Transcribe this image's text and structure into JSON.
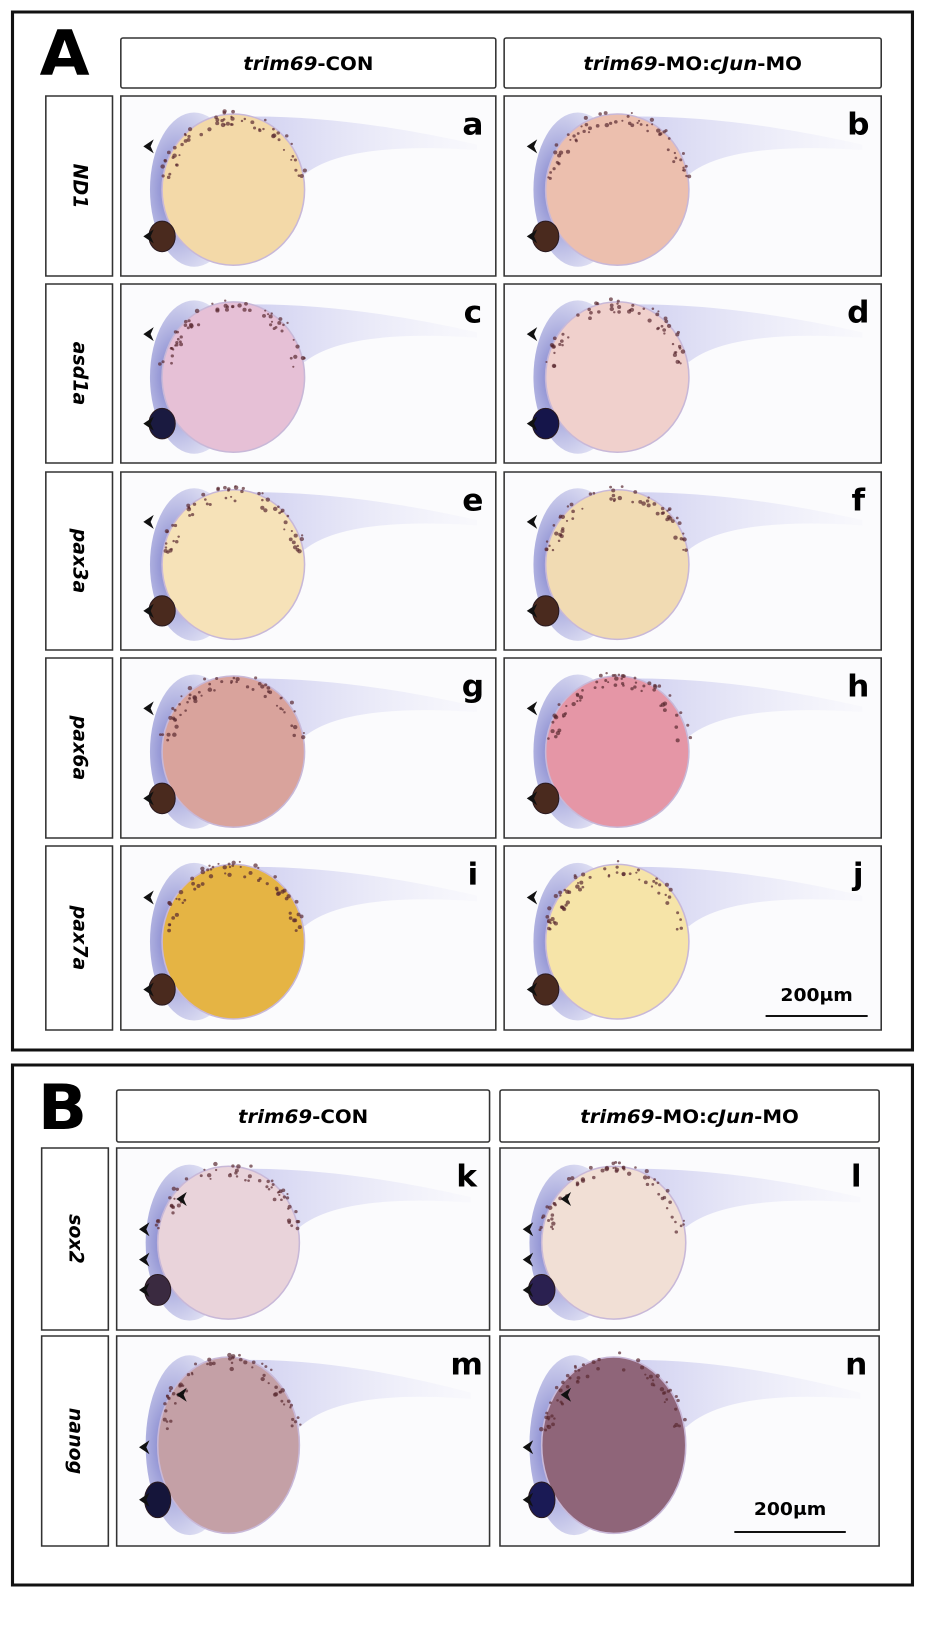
{
  "panels": [
    {
      "label": "A",
      "columns": [
        {
          "parts": [
            {
              "text": "trim69",
              "italic": true
            },
            {
              "text": "-CON",
              "italic": false
            }
          ]
        },
        {
          "parts": [
            {
              "text": "trim69",
              "italic": true
            },
            {
              "text": "-MO:",
              "italic": false
            },
            {
              "text": "cJun",
              "italic": true
            },
            {
              "text": "-MO",
              "italic": false
            }
          ]
        }
      ],
      "rows": [
        {
          "gene": "ND1",
          "images": [
            "a",
            "b"
          ]
        },
        {
          "gene": "asd1a",
          "images": [
            "c",
            "d"
          ]
        },
        {
          "gene": "pax3a",
          "images": [
            "e",
            "f"
          ]
        },
        {
          "gene": "pax6a",
          "images": [
            "g",
            "h"
          ]
        },
        {
          "gene": "pax7a",
          "images": [
            "i",
            "j"
          ]
        }
      ],
      "scale_bar": "200μm"
    },
    {
      "label": "B",
      "columns": [
        {
          "parts": [
            {
              "text": "trim69",
              "italic": true
            },
            {
              "text": "-CON",
              "italic": false
            }
          ]
        },
        {
          "parts": [
            {
              "text": "trim69",
              "italic": true
            },
            {
              "text": "-MO:",
              "italic": false
            },
            {
              "text": "cJun",
              "italic": true
            },
            {
              "text": "-MO",
              "italic": false
            }
          ]
        }
      ],
      "rows": [
        {
          "gene": "sox2",
          "images": [
            "k",
            "l"
          ]
        },
        {
          "gene": "nanog",
          "images": [
            "m",
            "n"
          ]
        }
      ],
      "scale_bar": "200μm"
    }
  ]
}
